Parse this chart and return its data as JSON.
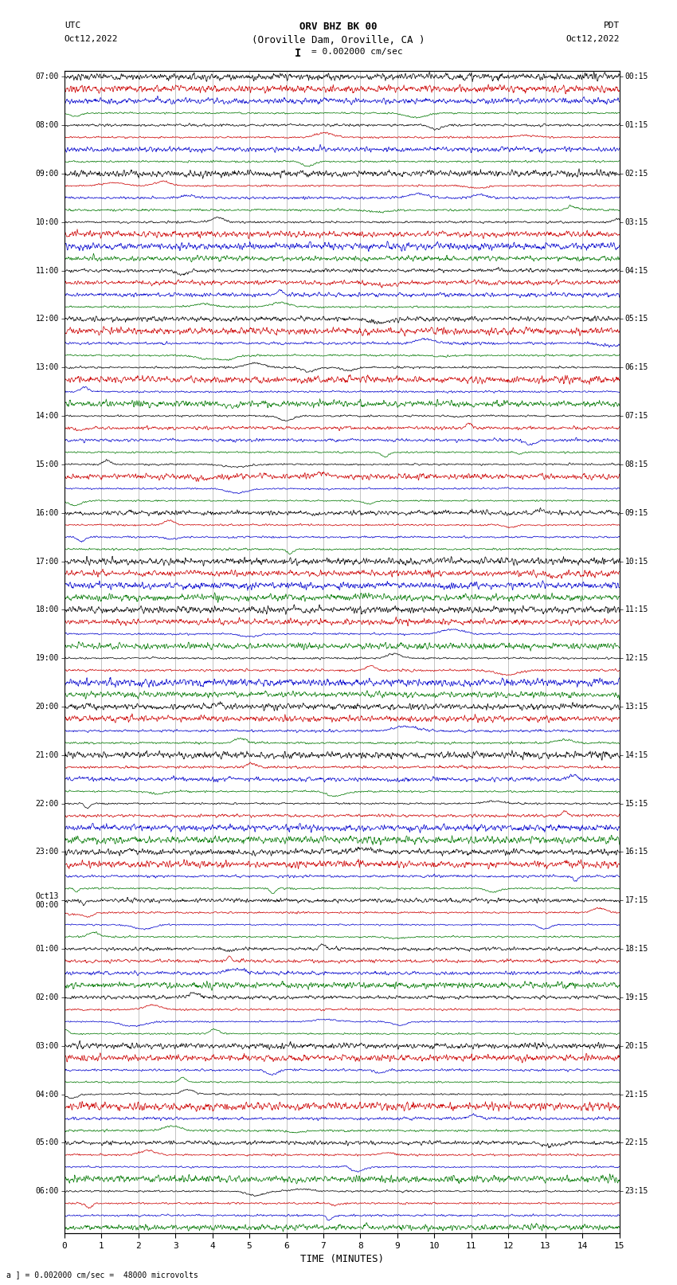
{
  "title_line1": "ORV BHZ BK 00",
  "title_line2": "(Oroville Dam, Oroville, CA )",
  "scale_text": "I = 0.002000 cm/sec",
  "left_header1": "UTC",
  "left_header2": "Oct12,2022",
  "right_header1": "PDT",
  "right_header2": "Oct12,2022",
  "xlabel": "TIME (MINUTES)",
  "footer": "a ] = 0.002000 cm/sec =  48000 microvolts",
  "xmin": 0,
  "xmax": 15,
  "bg_color": "#ffffff",
  "trace_colors": [
    "#000000",
    "#cc0000",
    "#0000cc",
    "#007700"
  ],
  "grid_color": "#888888",
  "left_times": [
    "07:00",
    "08:00",
    "09:00",
    "10:00",
    "11:00",
    "12:00",
    "13:00",
    "14:00",
    "15:00",
    "16:00",
    "17:00",
    "18:00",
    "19:00",
    "20:00",
    "21:00",
    "22:00",
    "23:00",
    "Oct13\n00:00",
    "01:00",
    "02:00",
    "03:00",
    "04:00",
    "05:00",
    "06:00"
  ],
  "right_times": [
    "00:15",
    "01:15",
    "02:15",
    "03:15",
    "04:15",
    "05:15",
    "06:15",
    "07:15",
    "08:15",
    "09:15",
    "10:15",
    "11:15",
    "12:15",
    "13:15",
    "14:15",
    "15:15",
    "16:15",
    "17:15",
    "18:15",
    "19:15",
    "20:15",
    "21:15",
    "22:15",
    "23:15"
  ],
  "num_hours": 24,
  "traces_per_hour": 4,
  "amplitude": 0.06,
  "noise_amplitude": 0.015,
  "figsize": [
    8.5,
    16.13
  ],
  "dpi": 100
}
